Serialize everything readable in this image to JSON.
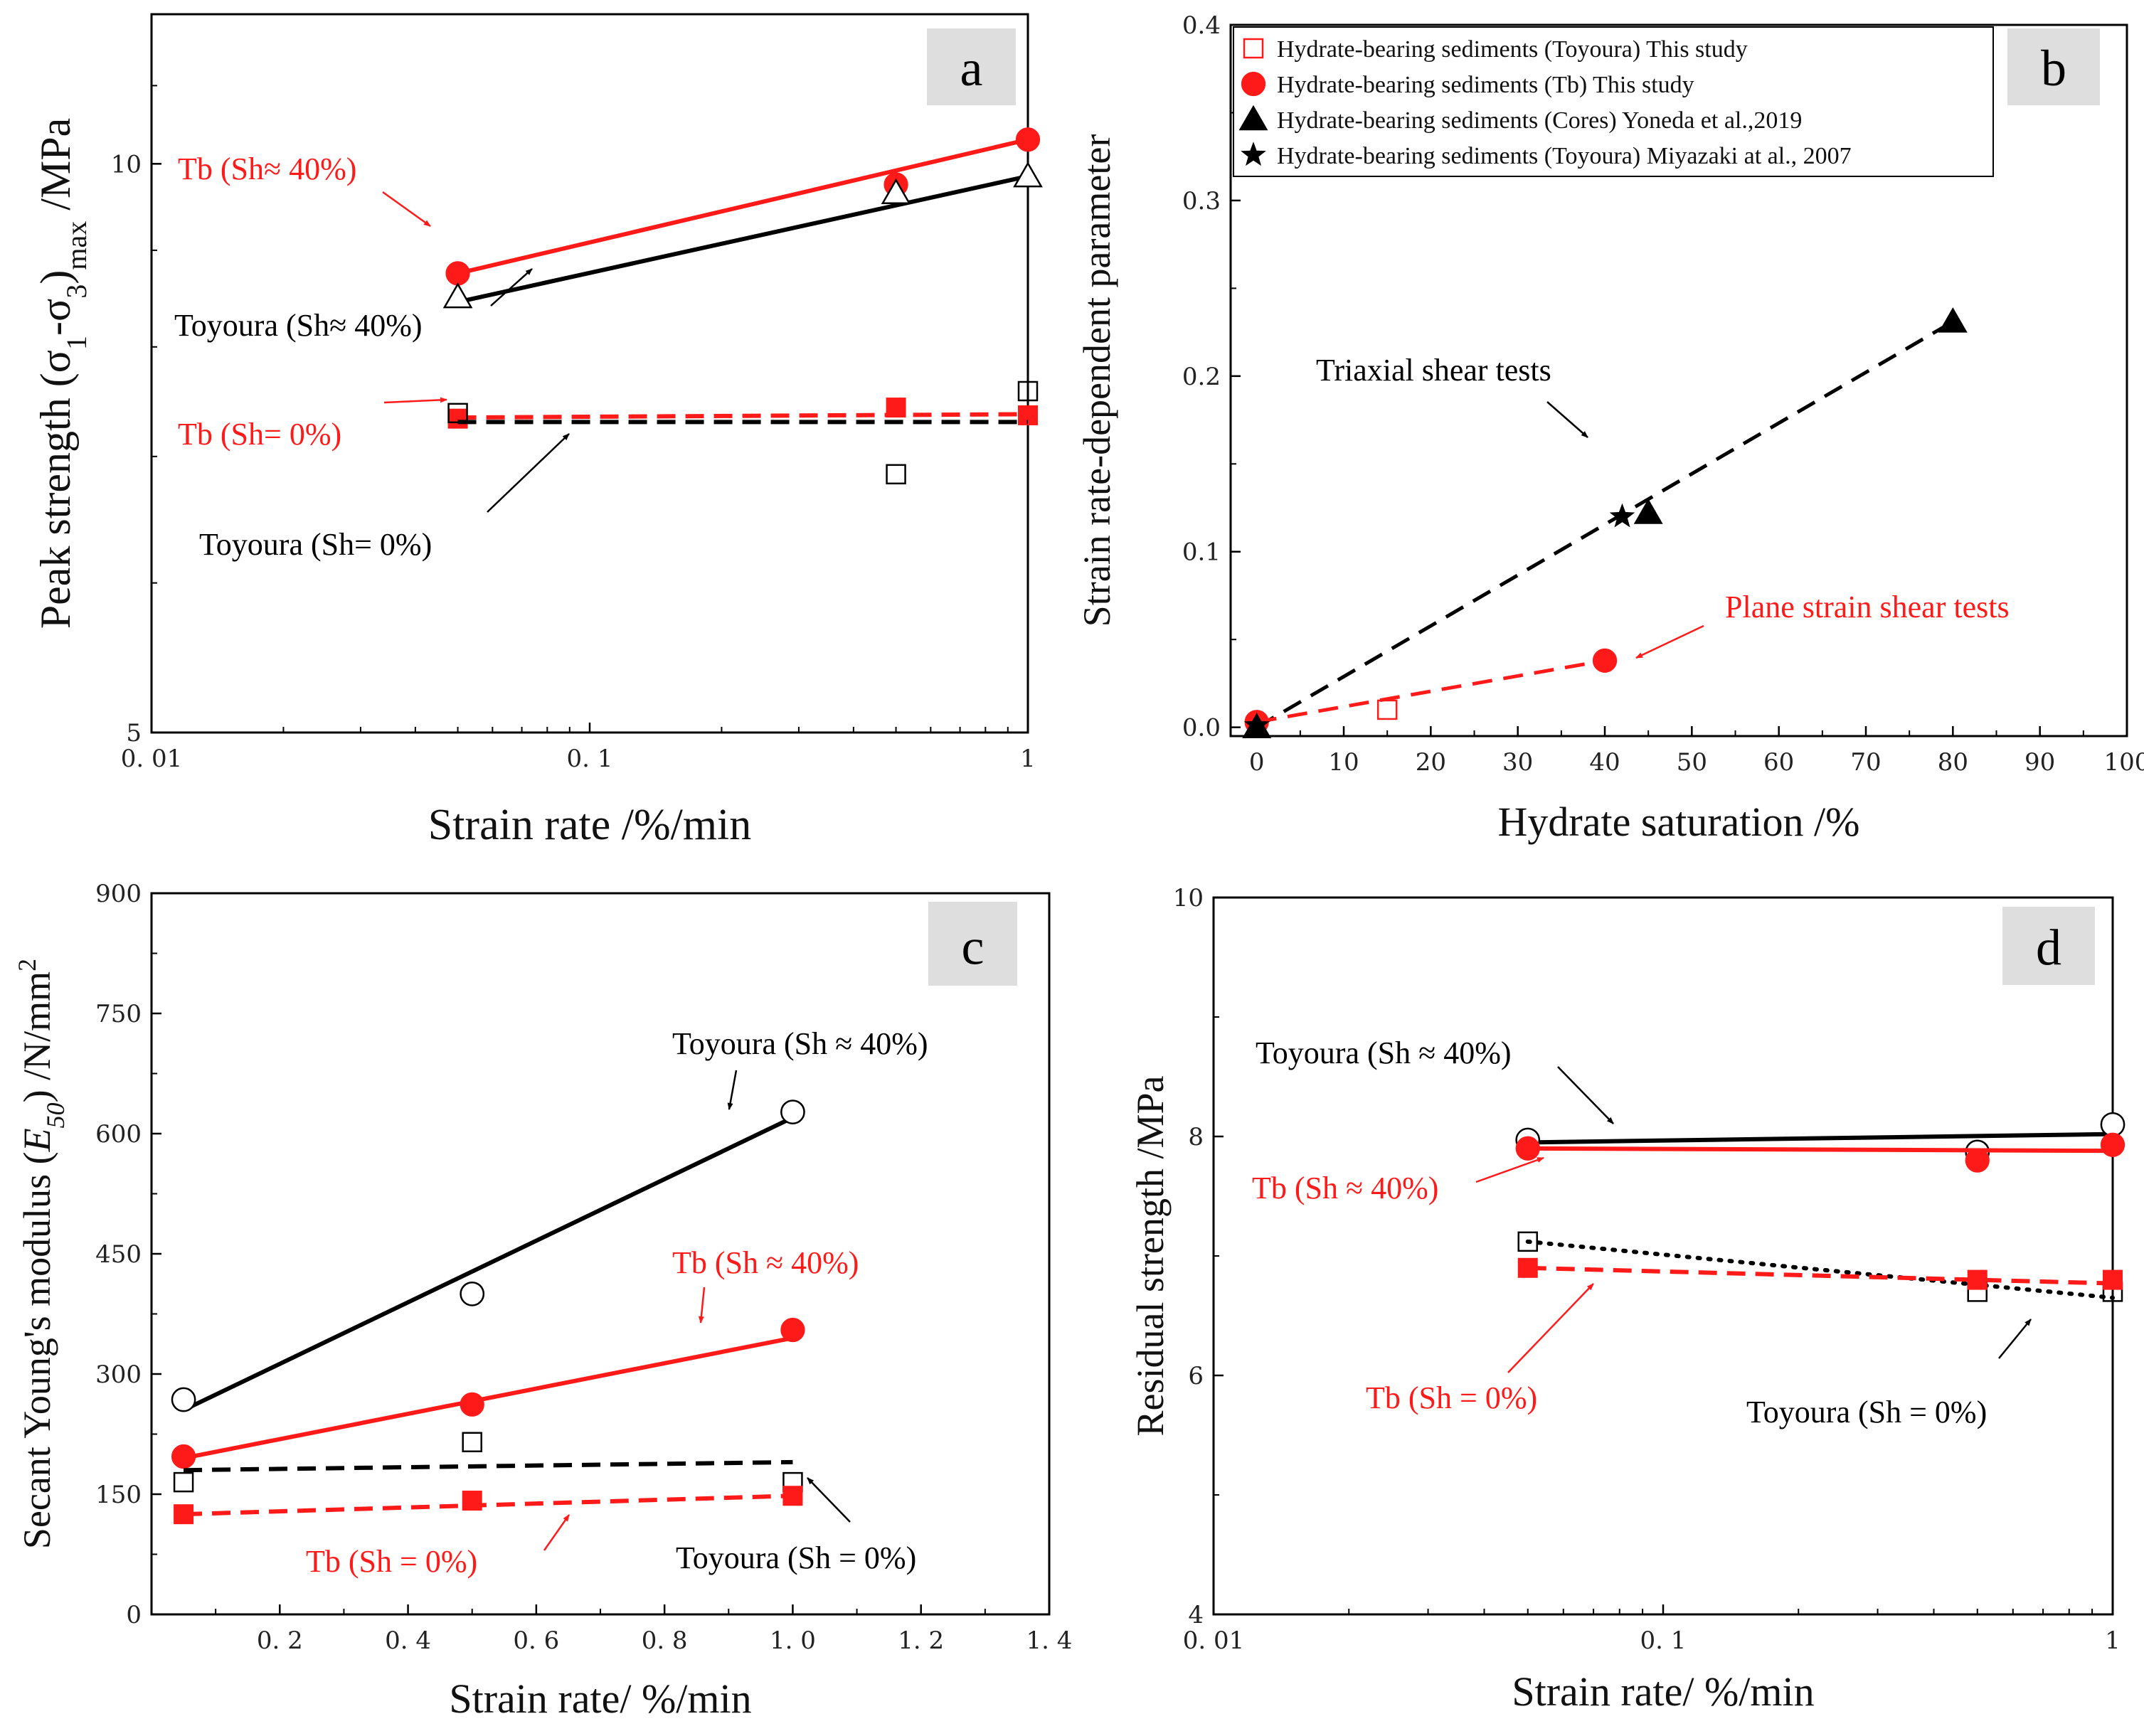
{
  "figure_title": "",
  "colors": {
    "red": "#ff1a1a",
    "black": "#000000",
    "label_box": "#dedede"
  },
  "chart_data": [
    {
      "panel": "a",
      "type": "line",
      "x_scale": "log",
      "y_scale": "log",
      "xlim": [
        0.01,
        1
      ],
      "ylim": [
        5,
        12
      ],
      "xlabel": "Strain rate /%/min",
      "ylabel": {
        "main": "Peak strength (σ",
        "s1": "1",
        "mid": "-σ",
        "s3": "3",
        "close": ")",
        "sub": "max",
        "unit": " /MPa"
      },
      "xticks": [
        {
          "v": 0.01,
          "label": "0. 01"
        },
        {
          "v": 0.1,
          "label": "0. 1"
        },
        {
          "v": 1,
          "label": "1"
        }
      ],
      "yticks": [
        {
          "v": 5,
          "label": "5"
        },
        {
          "v": 10,
          "label": "10"
        }
      ],
      "series": [
        {
          "name": "Tb (Sh≈ 40%)",
          "color": "red",
          "marker": "circle-filled",
          "points": [
            [
              0.05,
              8.75
            ],
            [
              0.5,
              9.75
            ],
            [
              1,
              10.3
            ]
          ],
          "fit": [
            [
              0.05,
              8.75
            ],
            [
              1,
              10.3
            ]
          ],
          "dash": "solid"
        },
        {
          "name": "Toyoura (Sh≈ 40%)",
          "color": "black",
          "marker": "triangle-open",
          "points": [
            [
              0.05,
              8.5
            ],
            [
              0.5,
              9.65
            ],
            [
              1,
              9.85
            ]
          ],
          "fit": [
            [
              0.05,
              8.45
            ],
            [
              1,
              9.85
            ]
          ],
          "dash": "solid"
        },
        {
          "name": "Tb (Sh= 0%)",
          "color": "red",
          "marker": "square-filled",
          "points": [
            [
              0.05,
              7.33
            ],
            [
              0.5,
              7.43
            ],
            [
              1,
              7.36
            ]
          ],
          "fit": [
            [
              0.05,
              7.34
            ],
            [
              1,
              7.37
            ]
          ],
          "dash": "dash"
        },
        {
          "name": "Toyoura (Sh= 0%)",
          "color": "black",
          "marker": "square-open",
          "points": [
            [
              0.05,
              7.38
            ],
            [
              0.5,
              6.85
            ],
            [
              1,
              7.58
            ]
          ],
          "fit": [
            [
              0.05,
              7.3
            ],
            [
              1,
              7.3
            ]
          ],
          "dash": "dash"
        }
      ],
      "annotations": [
        {
          "text": "Tb (Sh≈ 40%)",
          "color": "red"
        },
        {
          "text": "Toyoura (Sh≈ 40%)",
          "color": "black"
        },
        {
          "text": "Tb (Sh= 0%)",
          "color": "red"
        },
        {
          "text": "Toyoura (Sh= 0%)",
          "color": "black"
        }
      ]
    },
    {
      "panel": "b",
      "type": "scatter",
      "xlim": [
        -3,
        100
      ],
      "ylim": [
        -0.005,
        0.4
      ],
      "xlabel": "Hydrate saturation /%",
      "ylabel": "Strain rate-dependent parameter",
      "xticks": [
        0,
        10,
        20,
        30,
        40,
        50,
        60,
        70,
        80,
        90,
        100
      ],
      "yticks": [
        {
          "v": 0,
          "label": "0.0"
        },
        {
          "v": 0.1,
          "label": "0.1"
        },
        {
          "v": 0.2,
          "label": "0.2"
        },
        {
          "v": 0.3,
          "label": "0.3"
        },
        {
          "v": 0.4,
          "label": "0.4"
        }
      ],
      "legend": [
        {
          "marker": "square-open",
          "color": "red",
          "label": "Hydrate-bearing sediments (Toyoura) This study"
        },
        {
          "marker": "circle-filled",
          "color": "red",
          "label": "Hydrate-bearing sediments (Tb)         This study"
        },
        {
          "marker": "triangle-filled",
          "color": "black",
          "label": "Hydrate-bearing sediments (Cores)     Yoneda et al.,2019"
        },
        {
          "marker": "star",
          "color": "black",
          "label": "Hydrate-bearing sediments (Toyoura)  Miyazaki at al., 2007"
        }
      ],
      "series": [
        {
          "name": "Hydrate-bearing sediments (Toyoura) This study",
          "color": "red",
          "marker": "square-open",
          "points": [
            [
              15,
              0.01
            ]
          ]
        },
        {
          "name": "Hydrate-bearing sediments (Tb) This study",
          "color": "red",
          "marker": "circle-filled",
          "points": [
            [
              0,
              0.003
            ],
            [
              40,
              0.038
            ]
          ]
        },
        {
          "name": "Hydrate-bearing sediments (Cores) Yoneda et al.,2019",
          "color": "black",
          "marker": "triangle-filled",
          "points": [
            [
              0,
              0
            ],
            [
              45,
              0.122
            ],
            [
              80,
              0.231
            ]
          ]
        },
        {
          "name": "Hydrate-bearing sediments (Toyoura) Miyazaki at al., 2007",
          "color": "black",
          "marker": "star",
          "points": [
            [
              0,
              0.001
            ],
            [
              42,
              0.12
            ]
          ]
        }
      ],
      "fits": [
        {
          "name": "Triaxial shear tests",
          "color": "black",
          "points": [
            [
              0,
              0
            ],
            [
              80,
              0.231
            ]
          ]
        },
        {
          "name": "Plane strain shear tests",
          "color": "red",
          "points": [
            [
              0,
              0.003
            ],
            [
              40,
              0.038
            ]
          ]
        }
      ],
      "annotations": [
        {
          "text": "Triaxial shear tests",
          "color": "black"
        },
        {
          "text": "Plane strain shear tests",
          "color": "red"
        }
      ]
    },
    {
      "panel": "c",
      "type": "line",
      "xlim": [
        0.0,
        1.4
      ],
      "ylim": [
        0,
        900
      ],
      "xlabel": "Strain rate/ %/min",
      "ylabel": {
        "pre": "Secant Young's modulus (",
        "it": "E",
        "sub": "50",
        "post": ") /N/mm",
        "sup": "2"
      },
      "xticks": [
        {
          "v": 0.2,
          "label": "0. 2"
        },
        {
          "v": 0.4,
          "label": "0. 4"
        },
        {
          "v": 0.6,
          "label": "0. 6"
        },
        {
          "v": 0.8,
          "label": "0. 8"
        },
        {
          "v": 1.0,
          "label": "1. 0"
        },
        {
          "v": 1.2,
          "label": "1. 2"
        },
        {
          "v": 1.4,
          "label": "1. 4"
        }
      ],
      "yticks": [
        0,
        150,
        300,
        450,
        600,
        750,
        900
      ],
      "series": [
        {
          "name": "Toyoura (Sh ≈ 40%)",
          "color": "black",
          "marker": "circle-open",
          "points": [
            [
              0.05,
              268
            ],
            [
              0.5,
              400
            ],
            [
              1.0,
              627
            ]
          ],
          "fit": [
            [
              0.05,
              255
            ],
            [
              1.0,
              620
            ]
          ],
          "dash": "solid"
        },
        {
          "name": "Tb (Sh ≈ 40%)",
          "color": "red",
          "marker": "circle-filled",
          "points": [
            [
              0.05,
              197
            ],
            [
              0.5,
              262
            ],
            [
              1.0,
              355
            ]
          ],
          "fit": [
            [
              0.05,
              195
            ],
            [
              1.0,
              345
            ]
          ],
          "dash": "solid"
        },
        {
          "name": "Toyoura (Sh = 0%)",
          "color": "black",
          "marker": "square-open",
          "points": [
            [
              0.05,
              165
            ],
            [
              0.5,
              215
            ],
            [
              1.0,
              165
            ]
          ],
          "fit": [
            [
              0.05,
              180
            ],
            [
              1.0,
              190
            ]
          ],
          "dash": "dash"
        },
        {
          "name": "Tb (Sh = 0%)",
          "color": "red",
          "marker": "square-filled",
          "points": [
            [
              0.05,
              125
            ],
            [
              0.5,
              142
            ],
            [
              1.0,
              148
            ]
          ],
          "fit": [
            [
              0.05,
              125
            ],
            [
              1.0,
              148
            ]
          ],
          "dash": "dash"
        }
      ],
      "annotations": [
        {
          "text": "Toyoura (Sh ≈ 40%)",
          "color": "black"
        },
        {
          "text": "Tb (Sh ≈ 40%)",
          "color": "red"
        },
        {
          "text": "Tb (Sh = 0%)",
          "color": "red"
        },
        {
          "text": "Toyoura (Sh = 0%)",
          "color": "black"
        }
      ]
    },
    {
      "panel": "d",
      "type": "line",
      "x_scale": "log",
      "xlim": [
        0.01,
        1
      ],
      "ylim": [
        4,
        10
      ],
      "xlabel": "Strain rate/ %/min",
      "ylabel": "Residual strength /MPa",
      "xticks": [
        {
          "v": 0.01,
          "label": "0. 01"
        },
        {
          "v": 0.1,
          "label": "0. 1"
        },
        {
          "v": 1,
          "label": "1"
        }
      ],
      "yticks": [
        4,
        6,
        8,
        10
      ],
      "series": [
        {
          "name": "Toyoura (Sh ≈ 40%)",
          "color": "black",
          "marker": "circle-open",
          "points": [
            [
              0.05,
              7.97
            ],
            [
              0.5,
              7.87
            ],
            [
              1,
              8.1
            ]
          ],
          "fit": [
            [
              0.05,
              7.95
            ],
            [
              1,
              8.02
            ]
          ],
          "dash": "solid"
        },
        {
          "name": "Tb (Sh ≈ 40%)",
          "color": "red",
          "marker": "circle-filled",
          "points": [
            [
              0.05,
              7.9
            ],
            [
              0.5,
              7.8
            ],
            [
              1,
              7.93
            ]
          ],
          "fit": [
            [
              0.05,
              7.9
            ],
            [
              1,
              7.88
            ]
          ],
          "dash": "solid"
        },
        {
          "name": "Toyoura (Sh = 0%)",
          "color": "black",
          "marker": "square-open",
          "points": [
            [
              0.05,
              7.12
            ],
            [
              0.5,
              6.7
            ],
            [
              1,
              6.7
            ]
          ],
          "fit": [
            [
              0.05,
              7.12
            ],
            [
              1,
              6.65
            ]
          ],
          "dash": "dot"
        },
        {
          "name": "Tb (Sh = 0%)",
          "color": "red",
          "marker": "square-filled",
          "points": [
            [
              0.05,
              6.9
            ],
            [
              0.5,
              6.8
            ],
            [
              1,
              6.8
            ]
          ],
          "fit": [
            [
              0.05,
              6.9
            ],
            [
              1,
              6.77
            ]
          ],
          "dash": "dash"
        }
      ],
      "annotations": [
        {
          "text": "Toyoura (Sh ≈ 40%)",
          "color": "black"
        },
        {
          "text": "Tb (Sh ≈ 40%)",
          "color": "red"
        },
        {
          "text": "Tb (Sh = 0%)",
          "color": "red"
        },
        {
          "text": "Toyoura (Sh = 0%)",
          "color": "black"
        }
      ]
    }
  ]
}
